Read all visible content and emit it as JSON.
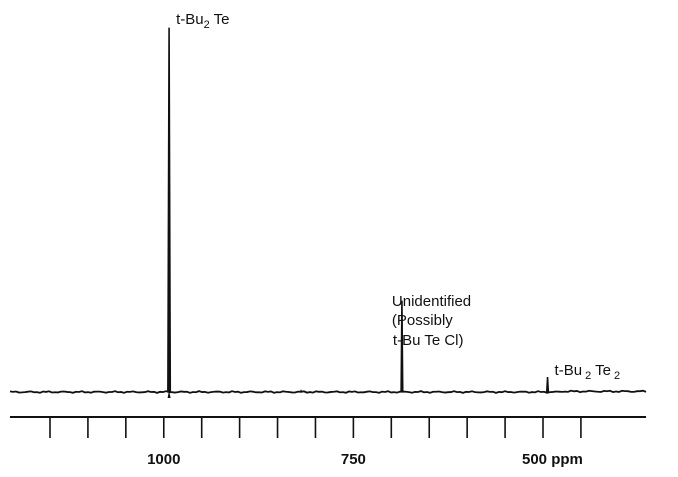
{
  "chart_data": {
    "type": "line",
    "title": "",
    "xlabel": "",
    "ylabel": "",
    "x_unit": "ppm",
    "x_direction": "decreasing-to-right",
    "xlim": [
      1165,
      445
    ],
    "ylim": [
      0,
      1.0
    ],
    "grid": false,
    "legend": "none",
    "x_tick_labels": [
      "1000",
      "750",
      "500 ppm"
    ],
    "x_tick_label_values": [
      1000,
      750,
      500
    ],
    "major_tick_values": [
      1150,
      1100,
      1050,
      1000,
      950,
      900,
      850,
      800,
      750,
      700,
      650,
      600,
      550,
      500,
      450
    ],
    "peaks": [
      {
        "name": "t-Bu2Te",
        "label_parts": [
          [
            "t-Bu",
            false
          ],
          [
            "2",
            true
          ],
          [
            " Te",
            false
          ]
        ],
        "x": 993,
        "height": 1.0
      },
      {
        "name": "Unidentified",
        "label_lines": [
          "Unidentified",
          "(Possibly",
          "t-Bu Te Cl)"
        ],
        "x": 686,
        "height": 0.25
      },
      {
        "name": "t-Bu2Te2",
        "label_parts": [
          [
            "t-Bu",
            false
          ],
          [
            " 2",
            true
          ],
          [
            " Te",
            false
          ],
          [
            " 2",
            true
          ]
        ],
        "x": 494,
        "height": 0.04
      }
    ],
    "baseline_spikes": [
      {
        "x": 819,
        "height": 0.006
      }
    ],
    "line_color": "#111111"
  }
}
